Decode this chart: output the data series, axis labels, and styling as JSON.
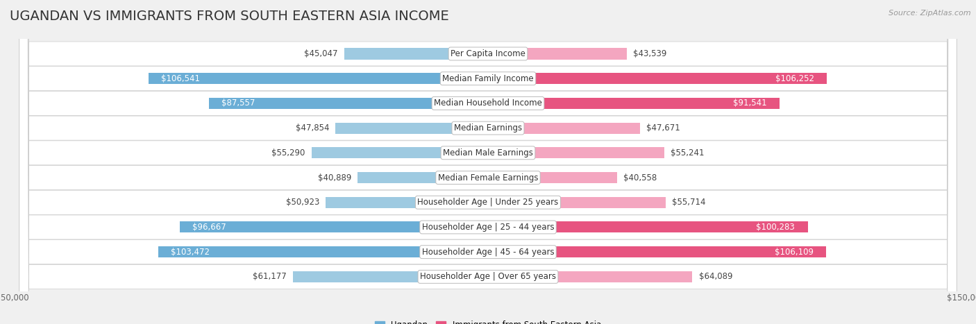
{
  "title": "UGANDAN VS IMMIGRANTS FROM SOUTH EASTERN ASIA INCOME",
  "source": "Source: ZipAtlas.com",
  "categories": [
    "Per Capita Income",
    "Median Family Income",
    "Median Household Income",
    "Median Earnings",
    "Median Male Earnings",
    "Median Female Earnings",
    "Householder Age | Under 25 years",
    "Householder Age | 25 - 44 years",
    "Householder Age | 45 - 64 years",
    "Householder Age | Over 65 years"
  ],
  "ugandan_values": [
    45047,
    106541,
    87557,
    47854,
    55290,
    40889,
    50923,
    96667,
    103472,
    61177
  ],
  "immigrant_values": [
    43539,
    106252,
    91541,
    47671,
    55241,
    40558,
    55714,
    100283,
    106109,
    64089
  ],
  "ugandan_labels": [
    "$45,047",
    "$106,541",
    "$87,557",
    "$47,854",
    "$55,290",
    "$40,889",
    "$50,923",
    "$96,667",
    "$103,472",
    "$61,177"
  ],
  "immigrant_labels": [
    "$43,539",
    "$106,252",
    "$91,541",
    "$47,671",
    "$55,241",
    "$40,558",
    "$55,714",
    "$100,283",
    "$106,109",
    "$64,089"
  ],
  "ugandan_color_large": "#6BAED6",
  "ugandan_color_small": "#9ECAE1",
  "immigrant_color_large": "#E75480",
  "immigrant_color_small": "#F4A6C0",
  "white_label_threshold": 80000,
  "max_value": 150000,
  "legend_ugandan": "Ugandan",
  "legend_immigrant": "Immigrants from South Eastern Asia",
  "bar_height": 0.45,
  "background_color": "#f0f0f0",
  "row_color": "#ffffff",
  "title_fontsize": 14,
  "label_fontsize": 8.5,
  "category_fontsize": 8.5,
  "source_fontsize": 8
}
